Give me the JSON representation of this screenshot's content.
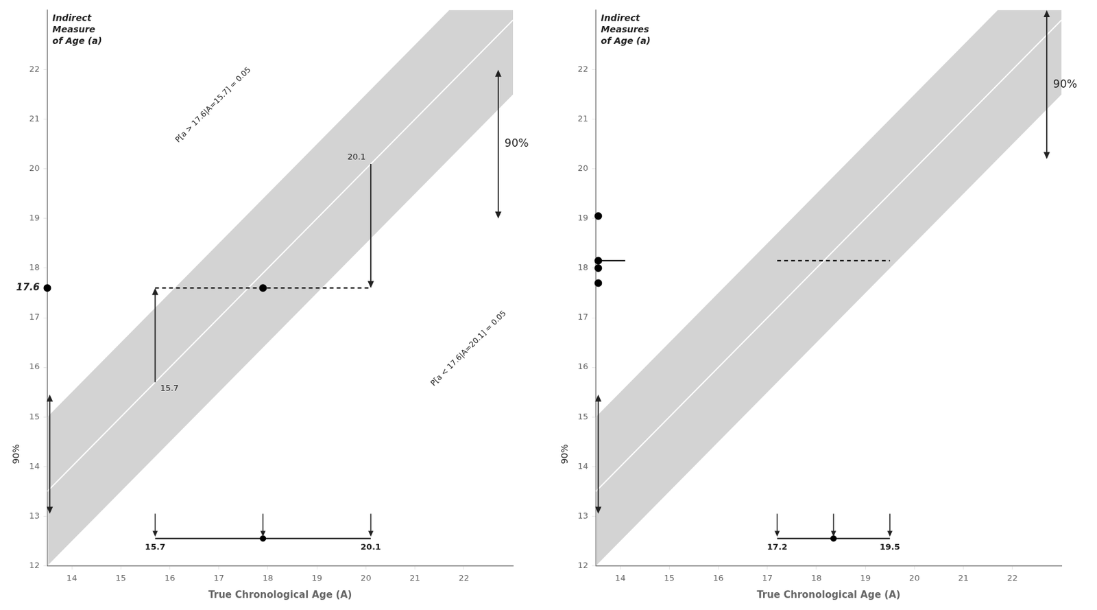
{
  "chart_data": [
    {
      "type": "scatter",
      "xlabel": "True Chronological Age (A)",
      "ylabel": "Indirect\nMeasure\nof Age (a)",
      "xlim": [
        13.5,
        23.0
      ],
      "ylim": [
        12.0,
        23.2
      ],
      "xticks": [
        14,
        15,
        16,
        17,
        18,
        19,
        20,
        21,
        22
      ],
      "yticks": [
        12,
        13,
        14,
        15,
        16,
        17,
        18,
        19,
        20,
        21,
        22
      ],
      "grid": false,
      "band": {
        "slope": 1.0,
        "intercept": 0.0,
        "half_width": 1.5,
        "color": "#d3d3d3",
        "line_color": "white"
      },
      "series": [
        {
          "type": "line",
          "x": [
            15.7,
            20.1
          ],
          "values": [
            17.6,
            17.6
          ],
          "line_style": "dashed",
          "marker": "none",
          "color": "black"
        },
        {
          "type": "scatter",
          "x": [
            17.9
          ],
          "values": [
            17.6
          ],
          "marker": "circle",
          "color": "black"
        },
        {
          "type": "scatter",
          "x": [
            13.5
          ],
          "values": [
            17.6
          ],
          "marker": "circle",
          "color": "black",
          "data_labels": true
        }
      ],
      "arrows": [
        {
          "x": 15.7,
          "from": 15.7,
          "to": 17.6,
          "label": "15.7"
        },
        {
          "x": 20.1,
          "from": 20.1,
          "to": 17.6,
          "label": "20.1"
        }
      ],
      "double_arrows": [
        {
          "x": 22.7,
          "from": 19.0,
          "to": 22.0,
          "label": "90%"
        },
        {
          "x": 13.55,
          "from": 13.05,
          "to": 15.45,
          "label": "90%"
        }
      ],
      "notes": [
        {
          "text": "P[a > 17.6|A=15.7] = 0.05",
          "x": 16.2,
          "y": 20.5
        },
        {
          "text": "P[a < 17.6|A=20.1] = 0.05",
          "x": 21.3,
          "y": 15.7
        }
      ],
      "interval": {
        "y": 12.55,
        "lower": 15.7,
        "center": 17.9,
        "upper": 20.1,
        "lower_label": "15.7",
        "upper_label": "20.1",
        "arrow_from": 13.05
      }
    },
    {
      "type": "scatter",
      "xlabel": "True Chronological Age (A)",
      "ylabel": "Indirect\nMeasures\nof Age (a)",
      "xlim": [
        13.5,
        23.0
      ],
      "ylim": [
        12.0,
        23.2
      ],
      "xticks": [
        14,
        15,
        16,
        17,
        18,
        19,
        20,
        21,
        22
      ],
      "yticks": [
        12,
        13,
        14,
        15,
        16,
        17,
        18,
        19,
        20,
        21,
        22
      ],
      "grid": false,
      "band": {
        "slope": 1.0,
        "intercept": 0.0,
        "half_width": 1.5,
        "color": "#d3d3d3",
        "line_color": "white"
      },
      "series": [
        {
          "type": "scatter",
          "x": [
            13.55,
            13.55,
            13.55,
            13.55
          ],
          "values": [
            19.05,
            18.15,
            18.0,
            17.7
          ],
          "marker": "circle",
          "color": "black"
        },
        {
          "type": "line",
          "x": [
            13.55,
            14.1
          ],
          "values": [
            18.15,
            18.15
          ],
          "line_style": "solid",
          "marker": "none",
          "color": "black"
        },
        {
          "type": "line",
          "x": [
            17.2,
            19.5
          ],
          "values": [
            18.15,
            18.15
          ],
          "line_style": "dashed",
          "marker": "none",
          "color": "black"
        }
      ],
      "arrows": [],
      "double_arrows": [
        {
          "x": 22.7,
          "from": 20.2,
          "to": 23.2,
          "label": "90%"
        },
        {
          "x": 13.55,
          "from": 13.05,
          "to": 15.45,
          "label": "90%"
        }
      ],
      "notes": [],
      "interval": {
        "y": 12.55,
        "lower": 17.2,
        "center": 18.35,
        "upper": 19.5,
        "lower_label": "17.2",
        "upper_label": "19.5",
        "arrow_from": 13.05
      }
    }
  ]
}
